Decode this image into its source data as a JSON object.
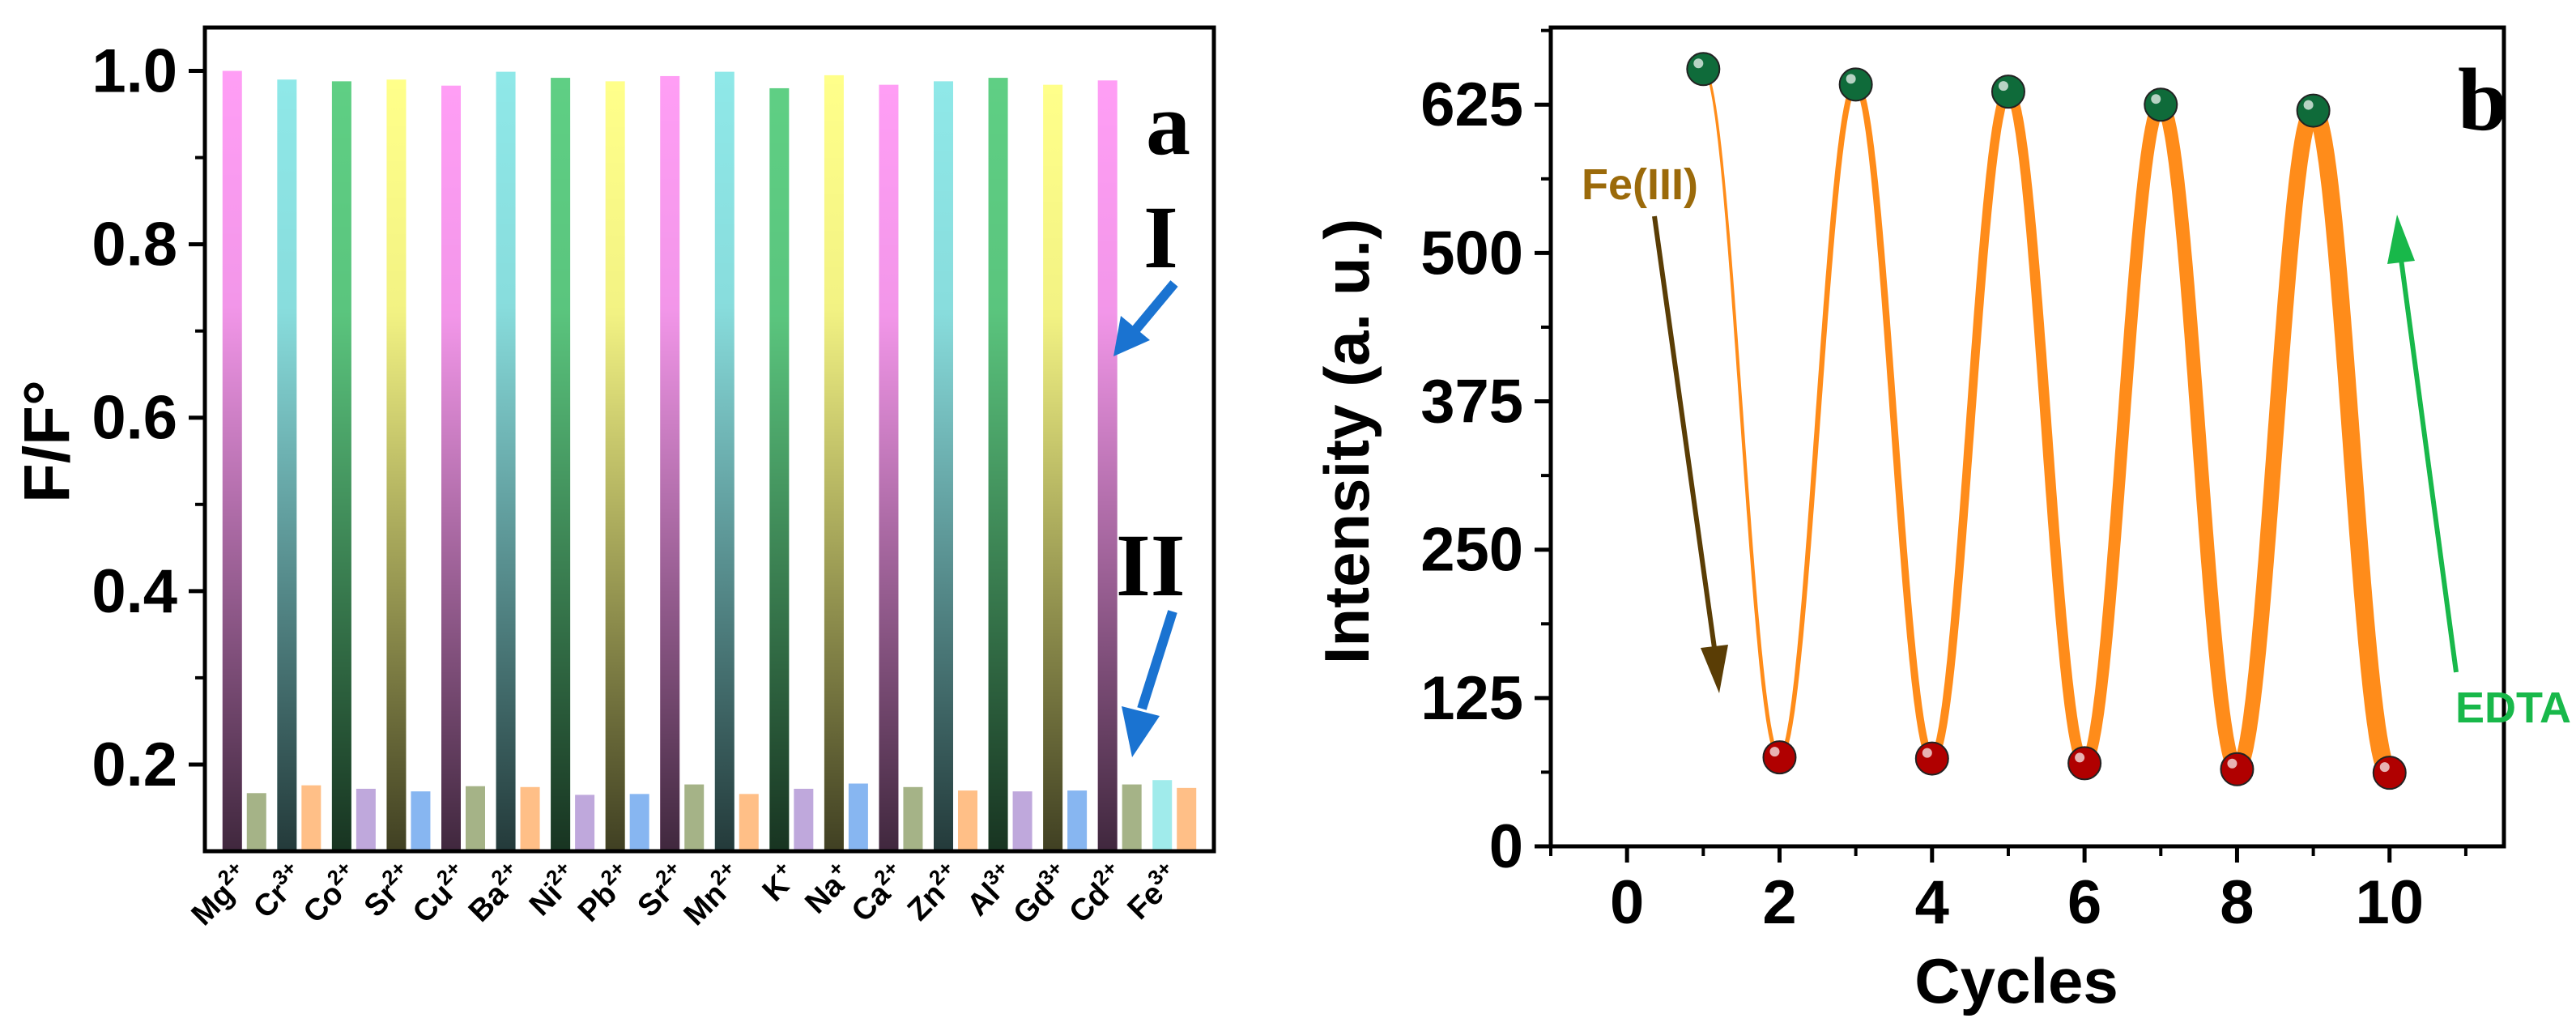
{
  "chart_data": [
    {
      "panel": "a",
      "type": "bar",
      "ylabel": "F/F°",
      "ylim": [
        0.1,
        1.05
      ],
      "yticks": [
        "0.2",
        "0.4",
        "0.6",
        "0.8",
        "1.0"
      ],
      "categories": [
        {
          "ion": "Mg",
          "charge": "2+"
        },
        {
          "ion": "Cr",
          "charge": "3+"
        },
        {
          "ion": "Co",
          "charge": "2+"
        },
        {
          "ion": "Sr",
          "charge": "2+"
        },
        {
          "ion": "Cu",
          "charge": "2+"
        },
        {
          "ion": "Ba",
          "charge": "2+"
        },
        {
          "ion": "Ni",
          "charge": "2+"
        },
        {
          "ion": "Pb",
          "charge": "2+"
        },
        {
          "ion": "Sr",
          "charge": "2+"
        },
        {
          "ion": "Mn",
          "charge": "2+"
        },
        {
          "ion": "K",
          "charge": "+"
        },
        {
          "ion": "Na",
          "charge": "+"
        },
        {
          "ion": "Ca",
          "charge": "2+"
        },
        {
          "ion": "Zn",
          "charge": "2+"
        },
        {
          "ion": "Al",
          "charge": "3+"
        },
        {
          "ion": "Gd",
          "charge": "3+"
        },
        {
          "ion": "Cd",
          "charge": "2+"
        },
        {
          "ion": "Fe",
          "charge": "3+"
        }
      ],
      "series": [
        {
          "name": "I",
          "values": [
            1.0,
            0.99,
            0.988,
            0.99,
            0.983,
            0.999,
            0.992,
            0.988,
            0.994,
            0.999,
            0.98,
            0.995,
            0.984,
            0.988,
            0.992,
            0.984,
            0.989,
            null
          ]
        },
        {
          "name": "II",
          "values": [
            0.167,
            0.176,
            0.172,
            0.169,
            0.175,
            0.174,
            0.165,
            0.166,
            0.177,
            0.166,
            0.172,
            0.178,
            0.174,
            0.17,
            0.169,
            0.17,
            0.177,
            0.173
          ]
        }
      ],
      "colors_I": [
        "#ff9ef5",
        "#8fe8e8",
        "#5fcf84",
        "#ffff8a",
        "#ff9ef5",
        "#8fe8e8",
        "#5fcf84",
        "#ffff8a",
        "#ff9ef5",
        "#8fe8e8",
        "#5fcf84",
        "#ffff8a",
        "#ff9ef5",
        "#8fe8e8",
        "#5fcf84",
        "#ffff8a",
        "#ff9ef5",
        "#8fe8e8"
      ],
      "colors_II": [
        "#9bab7a",
        "#ffb87a",
        "#b89ed8",
        "#7aaef0",
        "#9bab7a",
        "#ffb87a",
        "#b89ed8",
        "#7aaef0",
        "#9bab7a",
        "#ffb87a",
        "#b89ed8",
        "#7aaef0",
        "#9bab7a",
        "#ffb87a",
        "#b89ed8",
        "#7aaef0",
        "#9bab7a",
        "#ffb87a"
      ],
      "fe_bar_color": "#8fe8e8",
      "fe_value": 0.182,
      "annotations": {
        "label_I": "I",
        "label_II": "II",
        "panel_letter": "a"
      },
      "arrow_color": "#1a73d1"
    },
    {
      "panel": "b",
      "type": "line",
      "xlabel": "Cycles",
      "ylabel": "Intensity (a. u.)",
      "xlim": [
        -1,
        11.5
      ],
      "ylim": [
        0,
        690
      ],
      "xticks": [
        "0",
        "2",
        "4",
        "6",
        "8",
        "10"
      ],
      "yticks": [
        "0",
        "125",
        "250",
        "375",
        "500",
        "625"
      ],
      "x": [
        1,
        2,
        3,
        4,
        5,
        6,
        7,
        8,
        9,
        10
      ],
      "y": [
        655,
        75,
        642,
        74,
        636,
        70,
        625,
        65,
        620,
        62
      ],
      "line_color": "#ff8c1a",
      "high_marker_color": "#0f6b3a",
      "low_marker_color": "#b00000",
      "annotations": {
        "fe_label": "Fe(III)",
        "fe_color": "#9b6a0a",
        "fe_arrow_color": "#5a3d05",
        "edta_label": "EDTA",
        "edta_color": "#18b84a",
        "panel_letter": "b"
      }
    }
  ]
}
